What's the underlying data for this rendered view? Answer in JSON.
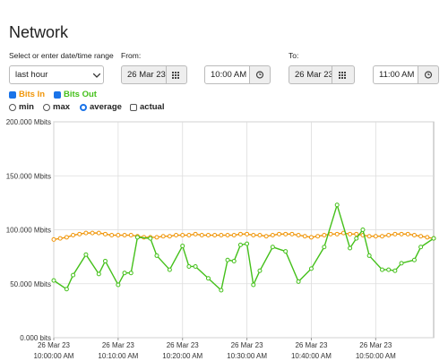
{
  "header": {
    "title": "Network"
  },
  "form": {
    "range_label": "Select or enter date/time range",
    "from_label": "From:",
    "to_label": "To:",
    "range_select": "last hour",
    "from_date": "26 Mar 23",
    "from_time": "10:00 AM",
    "to_date": "26 Mar 23",
    "to_time": "11:00 AM"
  },
  "options": {
    "min": "min",
    "max": "max",
    "average": "average",
    "actual": "actual"
  },
  "chart_data": {
    "type": "line",
    "ylim": [
      0,
      200
    ],
    "yticks": [
      {
        "value": 0,
        "label": "0.000 bits"
      },
      {
        "value": 50,
        "label": "50.000 Mbits"
      },
      {
        "value": 100,
        "label": "100.000 Mbits"
      },
      {
        "value": 150,
        "label": "150.000 Mbits"
      },
      {
        "value": 200,
        "label": "200.000 Mbits"
      }
    ],
    "xlim": [
      0,
      59
    ],
    "xticks": [
      {
        "value": 0,
        "date": "26 Mar 23",
        "time": "10:00:00 AM"
      },
      {
        "value": 10,
        "date": "26 Mar 23",
        "time": "10:10:00 AM"
      },
      {
        "value": 20,
        "date": "26 Mar 23",
        "time": "10:20:00 AM"
      },
      {
        "value": 30,
        "date": "26 Mar 23",
        "time": "10:30:00 AM"
      },
      {
        "value": 40,
        "date": "26 Mar 23",
        "time": "10:40:00 AM"
      },
      {
        "value": 50,
        "date": "26 Mar 23",
        "time": "10:50:00 AM"
      }
    ],
    "grid": true,
    "series": [
      {
        "name": "Bits In",
        "color": "#f0960a",
        "x": [
          0,
          1,
          2,
          3,
          4,
          5,
          6,
          7,
          8,
          9,
          10,
          11,
          12,
          13,
          14,
          15,
          16,
          17,
          18,
          19,
          20,
          21,
          22,
          23,
          24,
          25,
          26,
          27,
          28,
          29,
          30,
          31,
          32,
          33,
          34,
          35,
          36,
          37,
          38,
          39,
          40,
          41,
          42,
          43,
          44,
          45,
          46,
          47,
          48,
          49,
          50,
          51,
          52,
          53,
          54,
          55,
          56,
          57,
          58,
          59
        ],
        "values": [
          91,
          92,
          93,
          95,
          96,
          97,
          97,
          97,
          96,
          95,
          95,
          95,
          95,
          94,
          93,
          93,
          93,
          94,
          94,
          95,
          95,
          95,
          96,
          95,
          95,
          95,
          95,
          95,
          95,
          96,
          96,
          95,
          95,
          94,
          95,
          96,
          96,
          96,
          95,
          94,
          93,
          94,
          95,
          96,
          96,
          97,
          96,
          96,
          95,
          94,
          94,
          94,
          95,
          96,
          96,
          96,
          95,
          94,
          93,
          92
        ]
      },
      {
        "name": "Bits Out",
        "color": "#44c01a",
        "x": [
          0,
          2,
          3,
          5,
          7,
          8,
          10,
          11,
          12,
          13,
          15,
          16,
          18,
          20,
          21,
          22,
          24,
          26,
          27,
          28,
          29,
          30,
          31,
          32,
          34,
          36,
          38,
          40,
          42,
          44,
          46,
          47,
          48,
          49,
          51,
          52,
          53,
          54,
          56,
          57,
          59
        ],
        "values": [
          53,
          45,
          58,
          77,
          59,
          71,
          49,
          60,
          60,
          93,
          92,
          76,
          63,
          85,
          66,
          66,
          55,
          44,
          72,
          71,
          86,
          87,
          49,
          62,
          84,
          80,
          52,
          64,
          84,
          123,
          83,
          92,
          100,
          76,
          63,
          63,
          62,
          69,
          72,
          84,
          92
        ]
      }
    ]
  }
}
